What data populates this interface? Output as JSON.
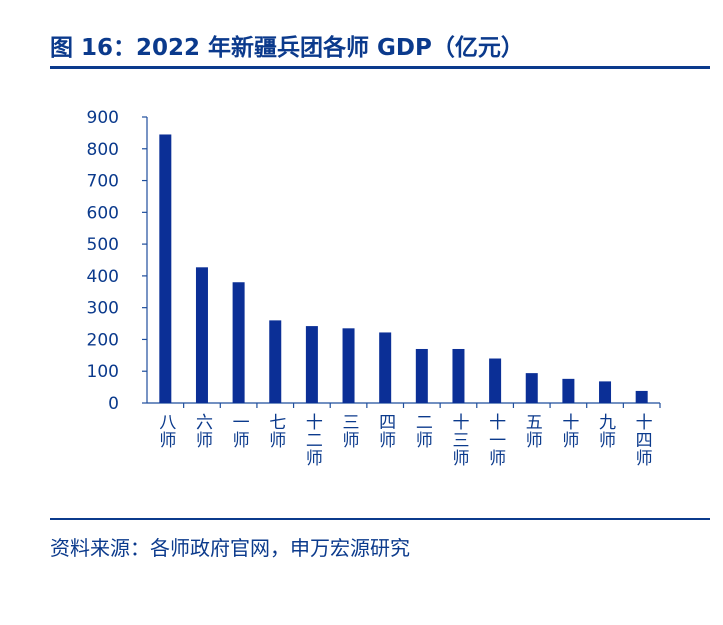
{
  "title": "图 16：2022 年新疆兵团各师 GDP（亿元）",
  "source": "资料来源：各师政府官网，申万宏源研究",
  "colors": {
    "bar": "#0b2f96",
    "axis": "#1f4e9c",
    "text": "#0b3a8c"
  },
  "chart_data": {
    "type": "bar",
    "categories": [
      "八师",
      "六师",
      "一师",
      "七师",
      "十二师",
      "三师",
      "四师",
      "二师",
      "十三师",
      "十一师",
      "五师",
      "十师",
      "九师",
      "十四师"
    ],
    "values": [
      845,
      427,
      380,
      260,
      242,
      235,
      222,
      170,
      170,
      140,
      94,
      76,
      68,
      38
    ],
    "ylim": [
      0,
      900
    ],
    "yticks": [
      0,
      100,
      200,
      300,
      400,
      500,
      600,
      700,
      800,
      900
    ],
    "xlabel": "",
    "ylabel": "",
    "grid": false,
    "legend": "none"
  }
}
